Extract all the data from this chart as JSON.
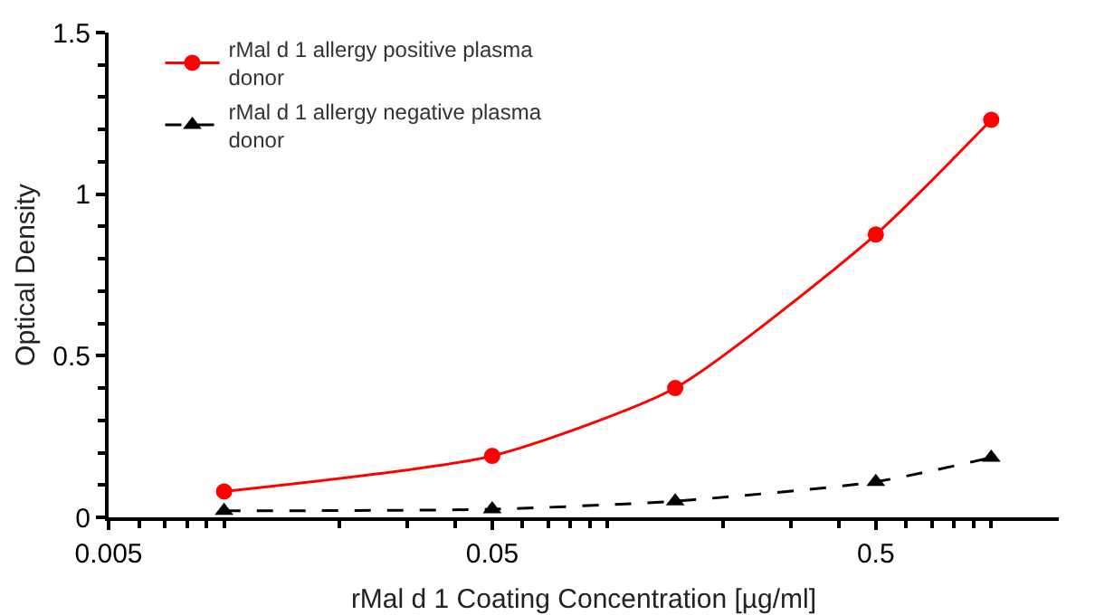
{
  "chart_data": {
    "type": "line",
    "xlabel": "rMal d 1 Coating Concentration [µg/ml]",
    "ylabel": "Optical Density",
    "x": [
      0.01,
      0.05,
      0.15,
      0.5,
      1
    ],
    "log": "x",
    "xlim": [
      0.005,
      1.5
    ],
    "xticks": [
      0.005,
      0.05,
      0.5
    ],
    "ylim": [
      0,
      1.5
    ],
    "yticks": [
      0,
      0.5,
      1,
      1.5
    ],
    "grid": false,
    "legend": "top left",
    "series": [
      {
        "name": "rMal d 1 allergy positive plasma donor",
        "color": "#ff0000",
        "values": [
          0.08,
          0.19,
          0.4,
          0.875,
          1.23
        ],
        "marker": "circle",
        "line_style": "solid"
      },
      {
        "name": "rMal d 1 allergy negative plasma donor",
        "color": "#000000",
        "values": [
          0.02,
          0.025,
          0.05,
          0.11,
          0.185
        ],
        "marker": "triangle",
        "line_style": "dashed"
      }
    ]
  }
}
